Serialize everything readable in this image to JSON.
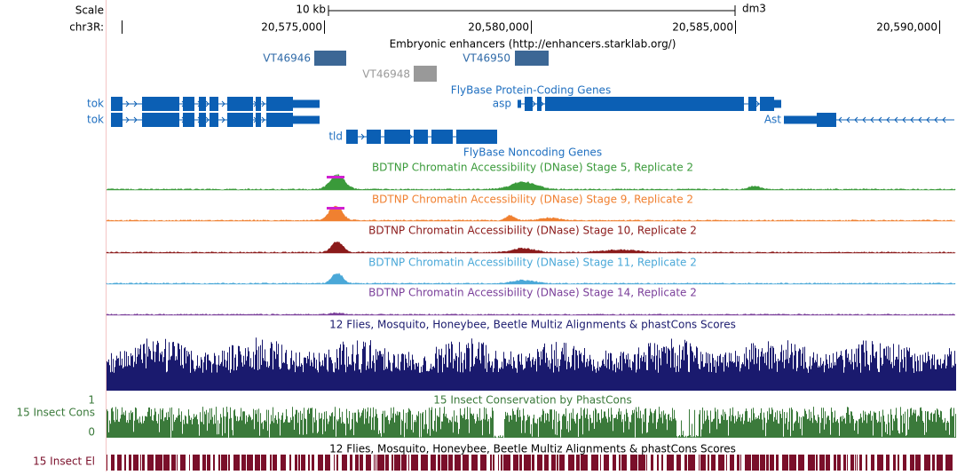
{
  "ruler": {
    "scale_label": "Scale",
    "scale": "10 kb",
    "assembly": "dm3",
    "chrom": "chr3R:",
    "positions": [
      "20,575,000",
      "20,580,000",
      "20,585,000",
      "20,590,000"
    ]
  },
  "enhancers": {
    "title": "Embryonic enhancers (http://enhancers.starklab.org/)",
    "items": [
      "VT46946",
      "VT46948",
      "VT46950"
    ]
  },
  "protein_coding": {
    "title": "FlyBase Protein-Coding Genes",
    "genes": [
      "tok",
      "tok",
      "asp",
      "Ast",
      "tld"
    ]
  },
  "noncoding": {
    "title": "FlyBase Noncoding Genes"
  },
  "dnase": [
    "BDTNP Chromatin Accessibility (DNase) Stage 5, Replicate 2",
    "BDTNP Chromatin Accessibility (DNase) Stage 9, Replicate 2",
    "BDTNP Chromatin Accessibility (DNase) Stage 10, Replicate 2",
    "BDTNP Chromatin Accessibility (DNase) Stage 11, Replicate 2",
    "BDTNP Chromatin Accessibility (DNase) Stage 14, Replicate 2"
  ],
  "multiz": {
    "title": "12 Flies, Mosquito, Honeybee, Beetle Multiz Alignments & phastCons Scores"
  },
  "phastcons": {
    "title": "15 Insect Conservation by PhastCons",
    "side_label": "15 Insect Cons",
    "max_label": "1",
    "min_label": "0"
  },
  "elements": {
    "title": "12 Flies, Mosquito, Honeybee, Beetle Multiz Alignments & phastCons Scores",
    "side_label": "15 Insect El"
  }
}
